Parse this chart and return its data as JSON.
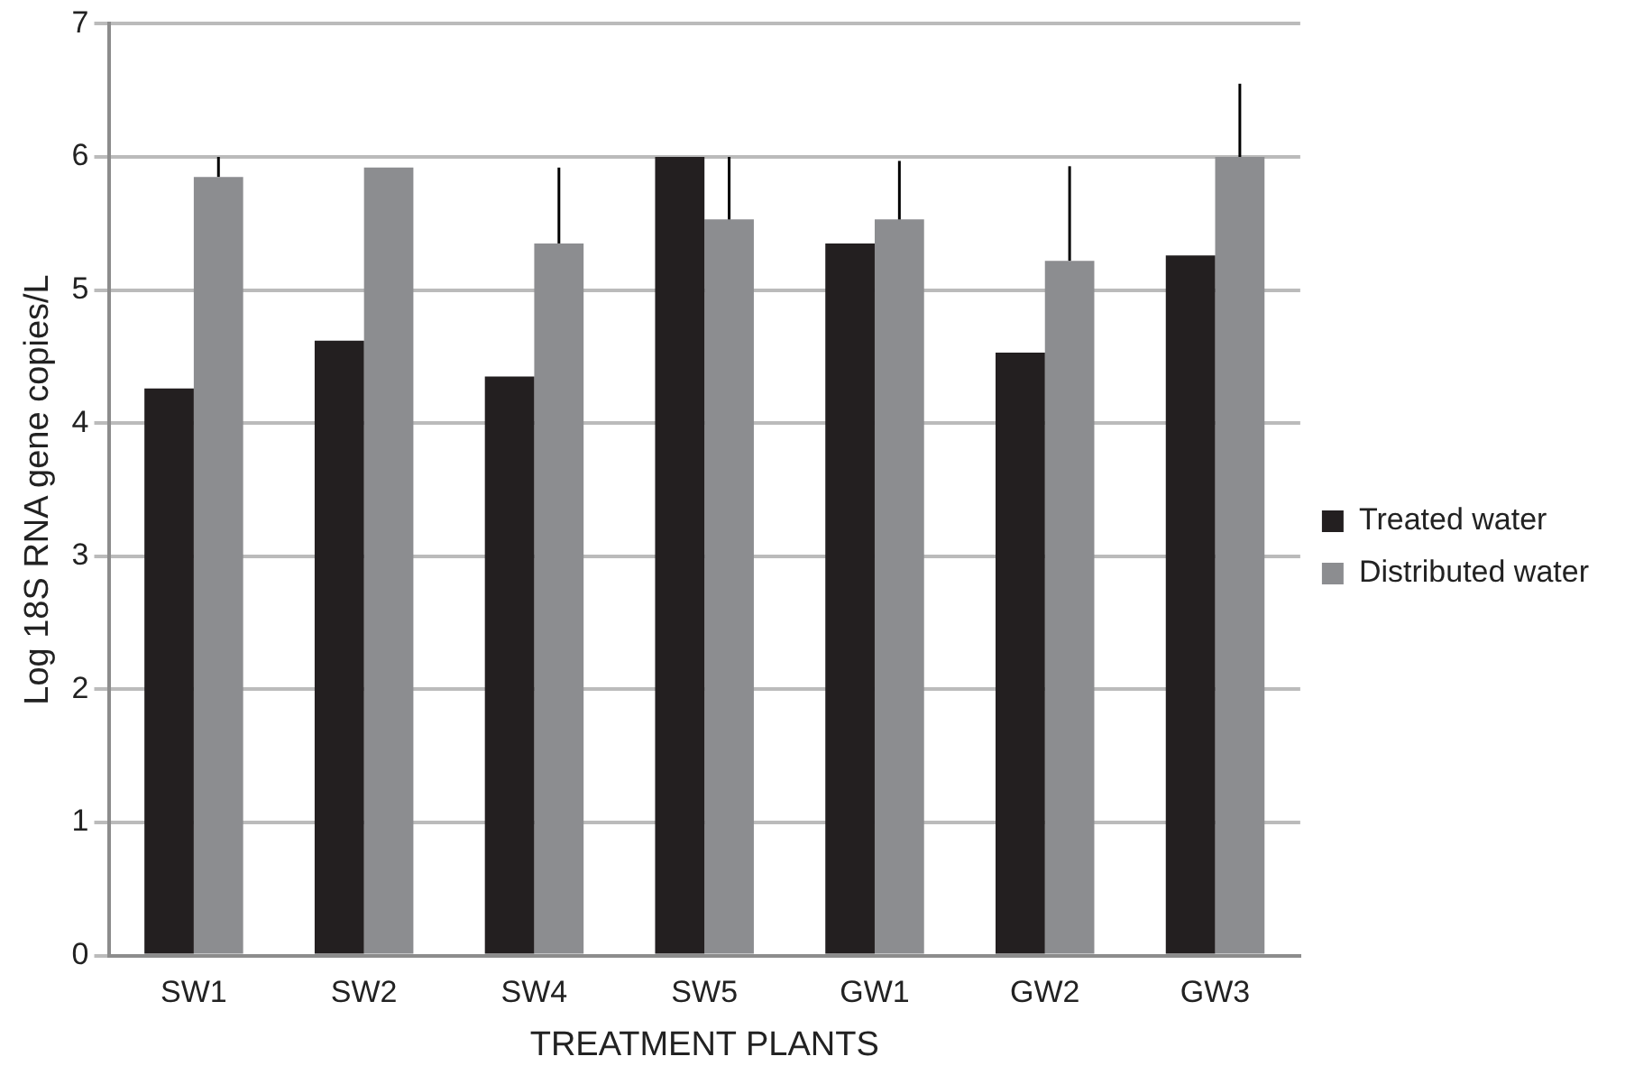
{
  "chart_data": {
    "type": "bar",
    "xlabel": "TREATMENT PLANTS",
    "ylabel": "Log 18S RNA gene copies/L",
    "categories": [
      "SW1",
      "SW2",
      "SW4",
      "SW5",
      "GW1",
      "GW2",
      "GW3"
    ],
    "series": [
      {
        "name": "Treated water",
        "color": "#231f20",
        "values": [
          4.26,
          4.62,
          4.35,
          6.0,
          5.35,
          4.53,
          5.26
        ]
      },
      {
        "name": "Distributed water",
        "color": "#8c8d90",
        "values": [
          5.85,
          5.92,
          5.35,
          5.53,
          5.53,
          5.22,
          6.0
        ],
        "errors": [
          [
            5.85,
            6.0
          ],
          null,
          [
            5.35,
            5.92
          ],
          [
            5.53,
            6.0
          ],
          [
            5.53,
            5.97
          ],
          [
            5.22,
            5.93
          ],
          [
            6.0,
            6.55
          ]
        ]
      }
    ],
    "ylim": [
      0,
      7
    ],
    "yticks": [
      0,
      1,
      2,
      3,
      4,
      5,
      6,
      7
    ],
    "grid": "y",
    "legend": "right"
  }
}
